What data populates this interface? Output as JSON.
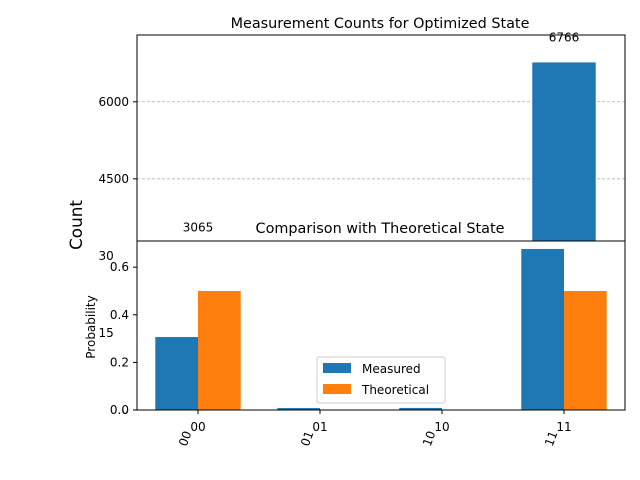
{
  "chart_data": [
    {
      "type": "bar",
      "title": "Measurement Counts for Optimized State",
      "xlabel": "",
      "ylabel": "Count",
      "categories": [
        "00",
        "01",
        "10",
        "11"
      ],
      "values": [
        3065,
        82,
        87,
        6766
      ],
      "ylim": [
        0,
        7300
      ],
      "yticks": [
        0,
        1500,
        3000,
        4500,
        6000
      ],
      "ytick_labels": [
        "0",
        "1500",
        "3000",
        "4500",
        "6000"
      ],
      "grid": true,
      "colors": {
        "bar": "#1f77b4",
        "grid": "#b0b0b0"
      },
      "data_labels": [
        "3065",
        "",
        "",
        "6766"
      ]
    },
    {
      "type": "bar",
      "title": "Comparison with Theoretical State",
      "xlabel": "",
      "ylabel": "Probability",
      "categories": [
        "00",
        "01",
        "10",
        "11"
      ],
      "series": [
        {
          "name": "Measured",
          "values": [
            0.3065,
            0.0082,
            0.0087,
            0.6766
          ],
          "color": "#1f77b4"
        },
        {
          "name": "Theoretical",
          "values": [
            0.5,
            0.0,
            0.0,
            0.5
          ],
          "color": "#ff7f0e"
        }
      ],
      "ylim": [
        0,
        0.71
      ],
      "yticks": [
        0,
        0.2,
        0.4,
        0.6
      ],
      "ytick_labels": [
        "0.0",
        "0.2",
        "0.4",
        "0.6"
      ],
      "legend": "lower-center"
    }
  ]
}
